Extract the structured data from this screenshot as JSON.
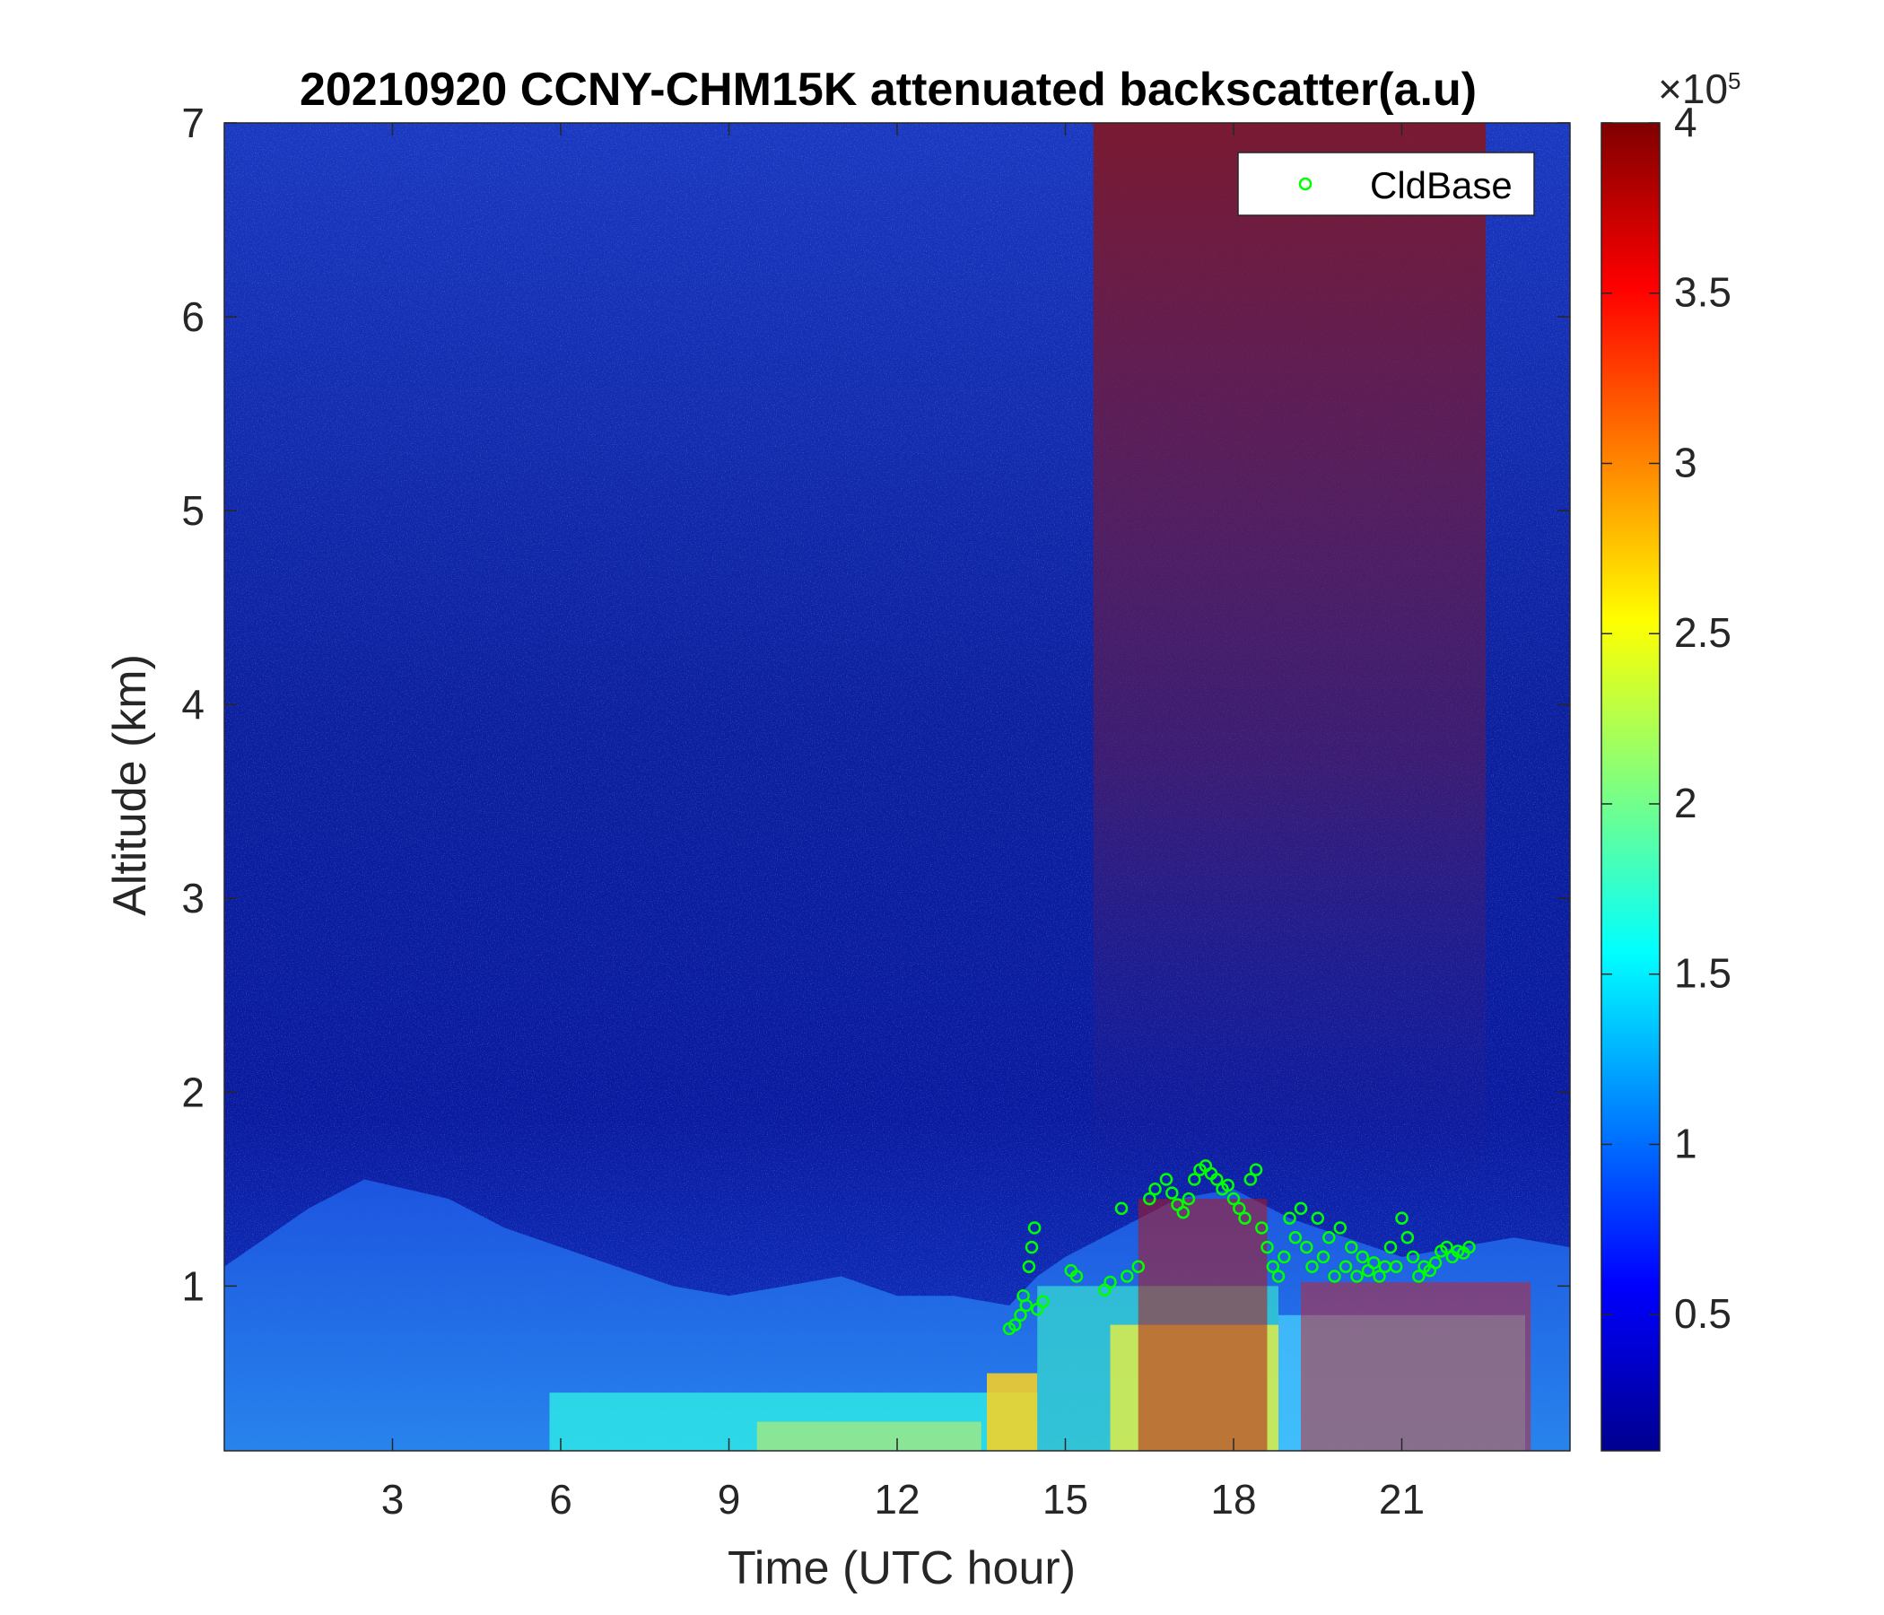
{
  "chart_data": {
    "type": "heatmap",
    "title": "20210920 CCNY-CHM15K attenuated backscatter(a.u)",
    "xlabel": "Time (UTC hour)",
    "ylabel": "Altitude (km)",
    "xlim": [
      0,
      24
    ],
    "ylim": [
      0.15,
      7
    ],
    "xticks": [
      3,
      6,
      9,
      12,
      15,
      18,
      21
    ],
    "yticks": [
      1,
      2,
      3,
      4,
      5,
      6,
      7
    ],
    "colorbar": {
      "colormap": "jet",
      "clim": [
        0.1,
        4
      ],
      "ticks": [
        0.5,
        1,
        1.5,
        2,
        2.5,
        3,
        3.5,
        4
      ],
      "exponent_label": "×10",
      "exponent": "5"
    },
    "legend": {
      "entries": [
        "CldBase"
      ],
      "location": "top-right",
      "marker": "circle",
      "color": "#00ff00"
    },
    "boundary_layer_top_km": [
      [
        0,
        1.1
      ],
      [
        1.5,
        1.4
      ],
      [
        2.5,
        1.55
      ],
      [
        4,
        1.45
      ],
      [
        5,
        1.3
      ],
      [
        6,
        1.2
      ],
      [
        7,
        1.1
      ],
      [
        8,
        1.0
      ],
      [
        9,
        0.95
      ],
      [
        10,
        1.0
      ],
      [
        11,
        1.05
      ],
      [
        12,
        0.95
      ],
      [
        13,
        0.95
      ],
      [
        14,
        0.9
      ],
      [
        14.5,
        1.05
      ],
      [
        15,
        1.15
      ],
      [
        16,
        1.3
      ],
      [
        17,
        1.45
      ],
      [
        18,
        1.5
      ],
      [
        19,
        1.35
      ],
      [
        20,
        1.25
      ],
      [
        21,
        1.15
      ],
      [
        22,
        1.2
      ],
      [
        23,
        1.25
      ],
      [
        24,
        1.2
      ]
    ],
    "cloud_base_points": [
      [
        14.0,
        0.78
      ],
      [
        14.1,
        0.8
      ],
      [
        14.2,
        0.85
      ],
      [
        14.25,
        0.95
      ],
      [
        14.3,
        0.9
      ],
      [
        14.35,
        1.1
      ],
      [
        14.4,
        1.2
      ],
      [
        14.45,
        1.3
      ],
      [
        14.5,
        0.88
      ],
      [
        14.6,
        0.92
      ],
      [
        15.1,
        1.08
      ],
      [
        15.2,
        1.05
      ],
      [
        15.7,
        0.98
      ],
      [
        15.8,
        1.02
      ],
      [
        16.0,
        1.4
      ],
      [
        16.1,
        1.05
      ],
      [
        16.3,
        1.1
      ],
      [
        16.5,
        1.45
      ],
      [
        16.6,
        1.5
      ],
      [
        16.8,
        1.55
      ],
      [
        16.9,
        1.48
      ],
      [
        17.0,
        1.42
      ],
      [
        17.1,
        1.38
      ],
      [
        17.2,
        1.45
      ],
      [
        17.3,
        1.55
      ],
      [
        17.4,
        1.6
      ],
      [
        17.5,
        1.62
      ],
      [
        17.6,
        1.58
      ],
      [
        17.7,
        1.55
      ],
      [
        17.8,
        1.5
      ],
      [
        17.9,
        1.52
      ],
      [
        18.0,
        1.45
      ],
      [
        18.1,
        1.4
      ],
      [
        18.2,
        1.35
      ],
      [
        18.3,
        1.55
      ],
      [
        18.4,
        1.6
      ],
      [
        18.5,
        1.3
      ],
      [
        18.6,
        1.2
      ],
      [
        18.7,
        1.1
      ],
      [
        18.8,
        1.05
      ],
      [
        18.9,
        1.15
      ],
      [
        19.0,
        1.35
      ],
      [
        19.1,
        1.25
      ],
      [
        19.2,
        1.4
      ],
      [
        19.3,
        1.2
      ],
      [
        19.4,
        1.1
      ],
      [
        19.5,
        1.35
      ],
      [
        19.6,
        1.15
      ],
      [
        19.7,
        1.25
      ],
      [
        19.8,
        1.05
      ],
      [
        19.9,
        1.3
      ],
      [
        20.0,
        1.1
      ],
      [
        20.1,
        1.2
      ],
      [
        20.2,
        1.05
      ],
      [
        20.3,
        1.15
      ],
      [
        20.4,
        1.08
      ],
      [
        20.5,
        1.12
      ],
      [
        20.6,
        1.05
      ],
      [
        20.7,
        1.1
      ],
      [
        20.8,
        1.2
      ],
      [
        20.9,
        1.1
      ],
      [
        21.0,
        1.35
      ],
      [
        21.1,
        1.25
      ],
      [
        21.2,
        1.15
      ],
      [
        21.3,
        1.05
      ],
      [
        21.4,
        1.1
      ],
      [
        21.5,
        1.08
      ],
      [
        21.6,
        1.12
      ],
      [
        21.7,
        1.18
      ],
      [
        21.8,
        1.2
      ],
      [
        21.9,
        1.15
      ],
      [
        22.0,
        1.18
      ],
      [
        22.1,
        1.17
      ],
      [
        22.2,
        1.2
      ]
    ]
  }
}
